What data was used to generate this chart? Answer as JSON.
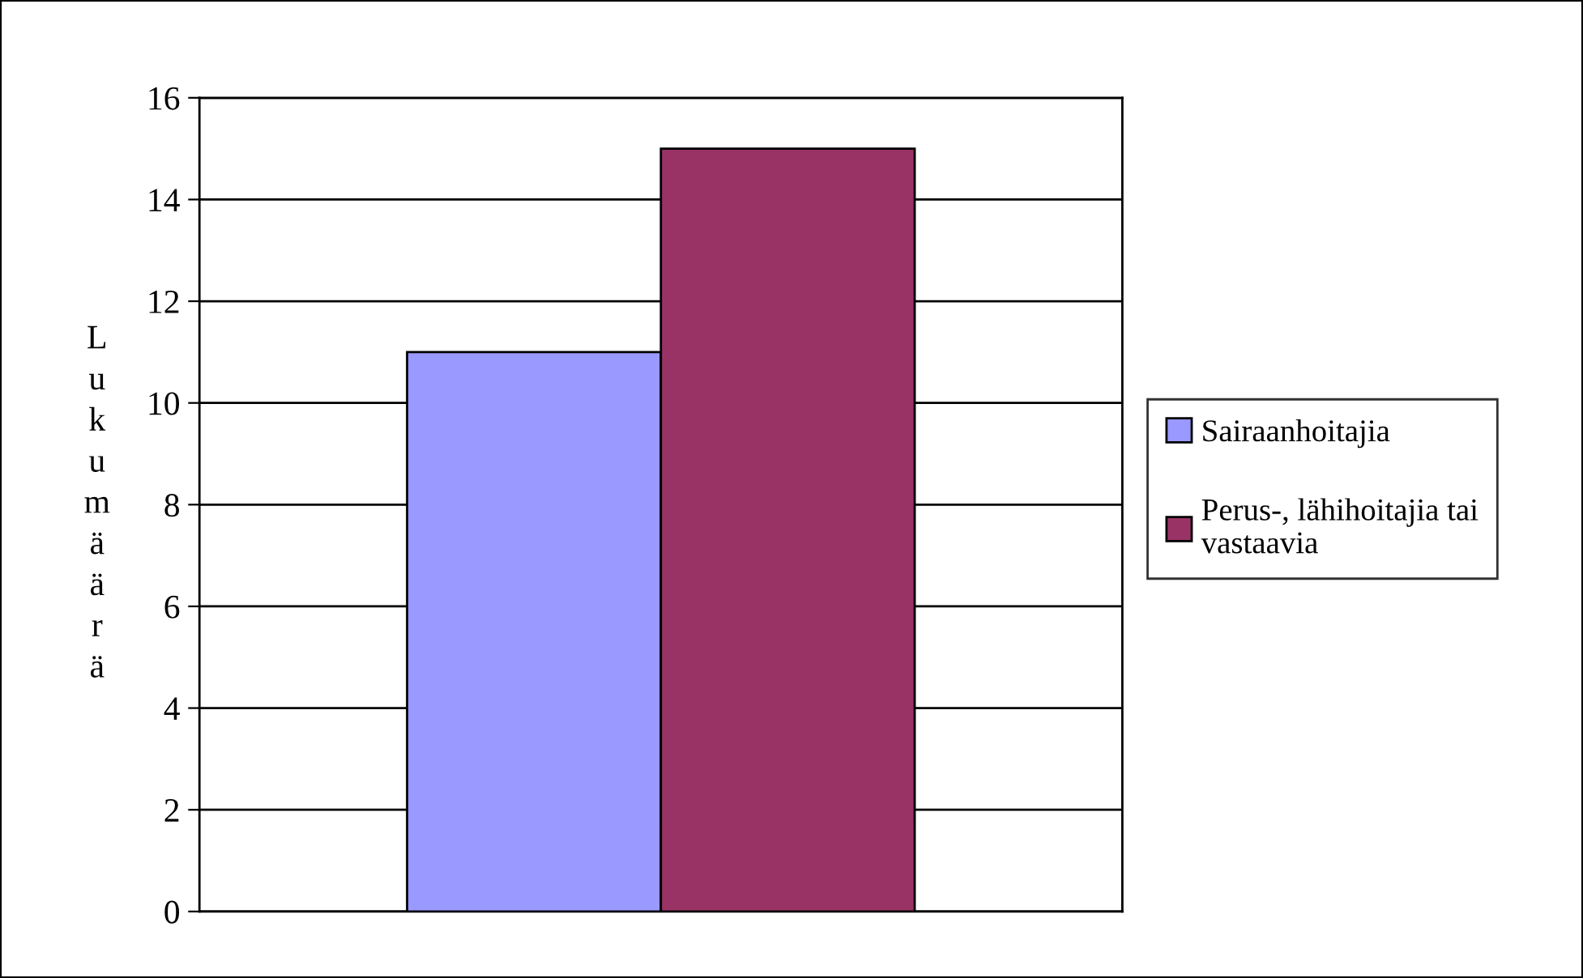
{
  "chart_data": {
    "type": "bar",
    "ylabel": "Lukumäärä",
    "categories": [
      null
    ],
    "series": [
      {
        "name": "Sairaanhoitajia",
        "color": "#9999ff",
        "values": [
          11
        ]
      },
      {
        "name": "Perus-, lähihoitajia tai vastaavia",
        "color": "#993366",
        "values": [
          15
        ]
      }
    ],
    "ylim": [
      0,
      16
    ],
    "yticks": [
      0,
      2,
      4,
      6,
      8,
      10,
      12,
      14,
      16
    ],
    "grid": "y",
    "legend": "right"
  }
}
